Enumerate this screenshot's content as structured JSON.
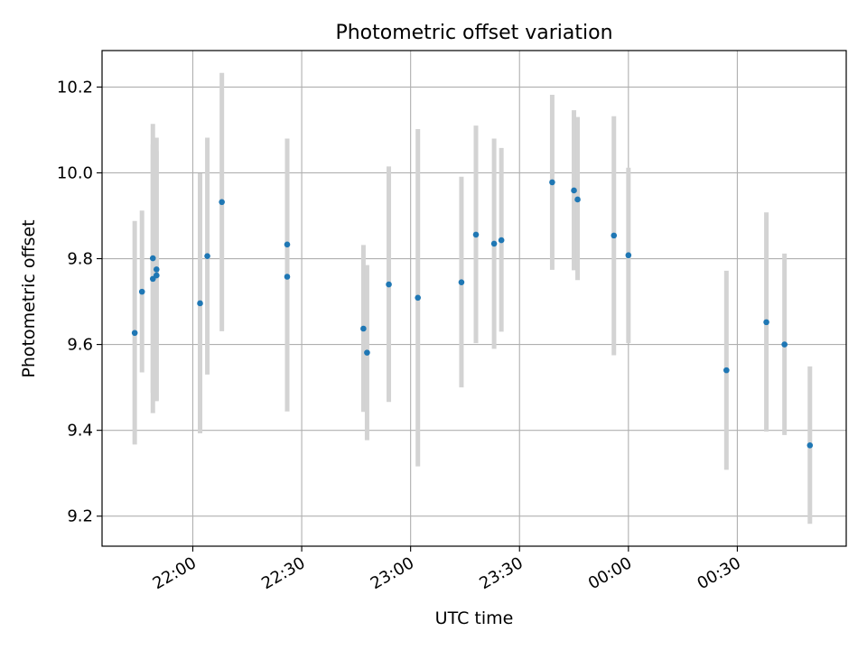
{
  "chart_data": {
    "type": "scatter",
    "title": "Photometric offset variation",
    "xlabel": "UTC time",
    "ylabel": "Photometric offset",
    "x_axis_kind": "time",
    "xlim": [
      "21:35",
      "01:00"
    ],
    "ylim": [
      9.13,
      10.285
    ],
    "grid": true,
    "x_ticks": [
      {
        "value": "22:00",
        "label": "22:00"
      },
      {
        "value": "22:30",
        "label": "22:30"
      },
      {
        "value": "23:00",
        "label": "23:00"
      },
      {
        "value": "23:30",
        "label": "23:30"
      },
      {
        "value": "00:00",
        "label": "00:00"
      },
      {
        "value": "00:30",
        "label": "00:30"
      }
    ],
    "y_ticks": [
      {
        "value": 9.2,
        "label": "9.2"
      },
      {
        "value": 9.4,
        "label": "9.4"
      },
      {
        "value": 9.6,
        "label": "9.6"
      },
      {
        "value": 9.8,
        "label": "9.8"
      },
      {
        "value": 10.0,
        "label": "10.0"
      },
      {
        "value": 10.2,
        "label": "10.2"
      }
    ],
    "colors": {
      "point": "#1f77b4",
      "errorbar": "#d3d3d3",
      "grid": "#b0b0b0"
    },
    "points": [
      {
        "x": "21:44",
        "y": 9.627,
        "ylow": 9.367,
        "yhigh": 9.888
      },
      {
        "x": "21:46",
        "y": 9.723,
        "ylow": 9.535,
        "yhigh": 9.912
      },
      {
        "x": "21:49",
        "y": 9.753,
        "ylow": 9.44,
        "yhigh": 10.066
      },
      {
        "x": "21:49",
        "y": 9.801,
        "ylow": 9.488,
        "yhigh": 10.114
      },
      {
        "x": "21:50",
        "y": 9.775,
        "ylow": 9.468,
        "yhigh": 10.082
      },
      {
        "x": "21:50",
        "y": 9.761,
        "ylow": 9.47,
        "yhigh": 10.051
      },
      {
        "x": "22:02",
        "y": 9.696,
        "ylow": 9.393,
        "yhigh": 9.999
      },
      {
        "x": "22:04",
        "y": 9.806,
        "ylow": 9.53,
        "yhigh": 10.082
      },
      {
        "x": "22:08",
        "y": 9.932,
        "ylow": 9.631,
        "yhigh": 10.233
      },
      {
        "x": "22:26",
        "y": 9.833,
        "ylow": 9.585,
        "yhigh": 10.08
      },
      {
        "x": "22:26",
        "y": 9.758,
        "ylow": 9.444,
        "yhigh": 10.071
      },
      {
        "x": "22:47",
        "y": 9.637,
        "ylow": 9.443,
        "yhigh": 9.832
      },
      {
        "x": "22:48",
        "y": 9.581,
        "ylow": 9.377,
        "yhigh": 9.785
      },
      {
        "x": "22:54",
        "y": 9.74,
        "ylow": 9.466,
        "yhigh": 10.015
      },
      {
        "x": "23:02",
        "y": 9.709,
        "ylow": 9.316,
        "yhigh": 10.102
      },
      {
        "x": "23:14",
        "y": 9.745,
        "ylow": 9.5,
        "yhigh": 9.991
      },
      {
        "x": "23:18",
        "y": 9.856,
        "ylow": 9.603,
        "yhigh": 10.11
      },
      {
        "x": "23:23",
        "y": 9.835,
        "ylow": 9.59,
        "yhigh": 10.08
      },
      {
        "x": "23:25",
        "y": 9.843,
        "ylow": 9.63,
        "yhigh": 10.058
      },
      {
        "x": "23:39",
        "y": 9.978,
        "ylow": 9.774,
        "yhigh": 10.182
      },
      {
        "x": "23:45",
        "y": 9.959,
        "ylow": 9.773,
        "yhigh": 10.146
      },
      {
        "x": "23:46",
        "y": 9.938,
        "ylow": 9.75,
        "yhigh": 10.13
      },
      {
        "x": "23:56",
        "y": 9.854,
        "ylow": 9.575,
        "yhigh": 10.132
      },
      {
        "x": "24:00",
        "y": 9.808,
        "ylow": 9.603,
        "yhigh": 10.012
      },
      {
        "x": "24:27",
        "y": 9.54,
        "ylow": 9.308,
        "yhigh": 9.772
      },
      {
        "x": "24:38",
        "y": 9.652,
        "ylow": 9.397,
        "yhigh": 9.908
      },
      {
        "x": "24:43",
        "y": 9.6,
        "ylow": 9.389,
        "yhigh": 9.812
      },
      {
        "x": "24:50",
        "y": 9.365,
        "ylow": 9.182,
        "yhigh": 9.549
      }
    ]
  }
}
